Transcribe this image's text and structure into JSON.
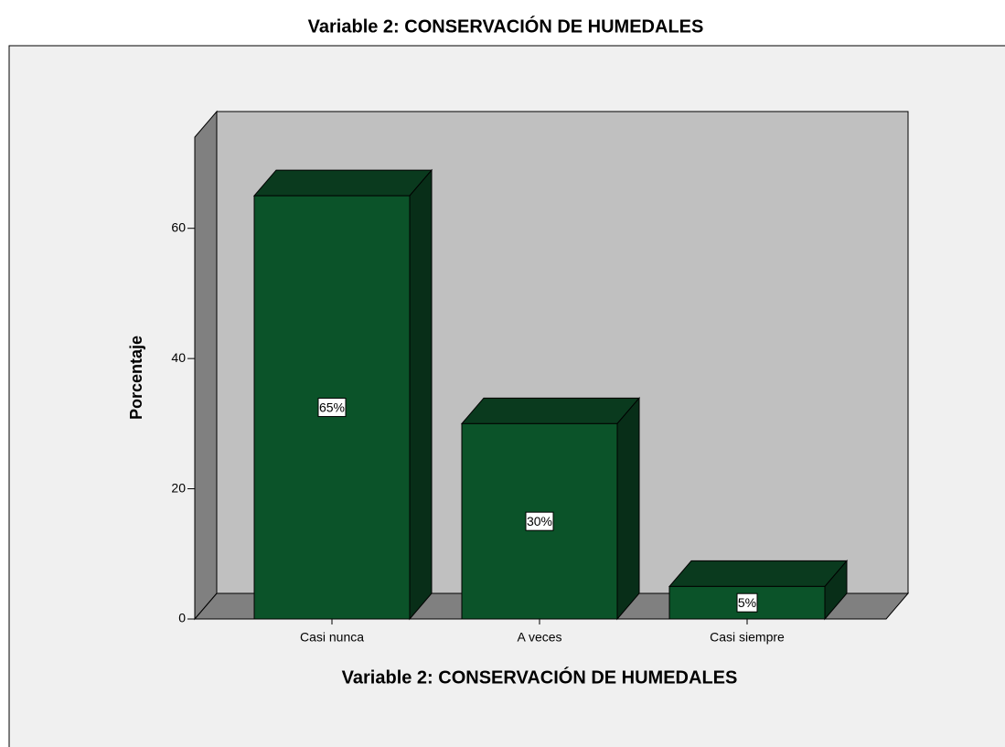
{
  "chart_data": {
    "type": "bar3d",
    "title": "Variable 2: CONSERVACIÓN DE HUMEDALES",
    "x_label": "Variable 2: CONSERVACIÓN DE HUMEDALES",
    "y_label": "Porcentaje",
    "categories": [
      "Casi nunca",
      "A veces",
      "Casi siempre"
    ],
    "values": [
      65,
      30,
      5
    ],
    "value_labels": [
      "65%",
      "30%",
      "5%"
    ],
    "color": "#0b5329",
    "ylim": [
      0,
      74
    ],
    "yticks": [
      0,
      20,
      40,
      60
    ]
  }
}
